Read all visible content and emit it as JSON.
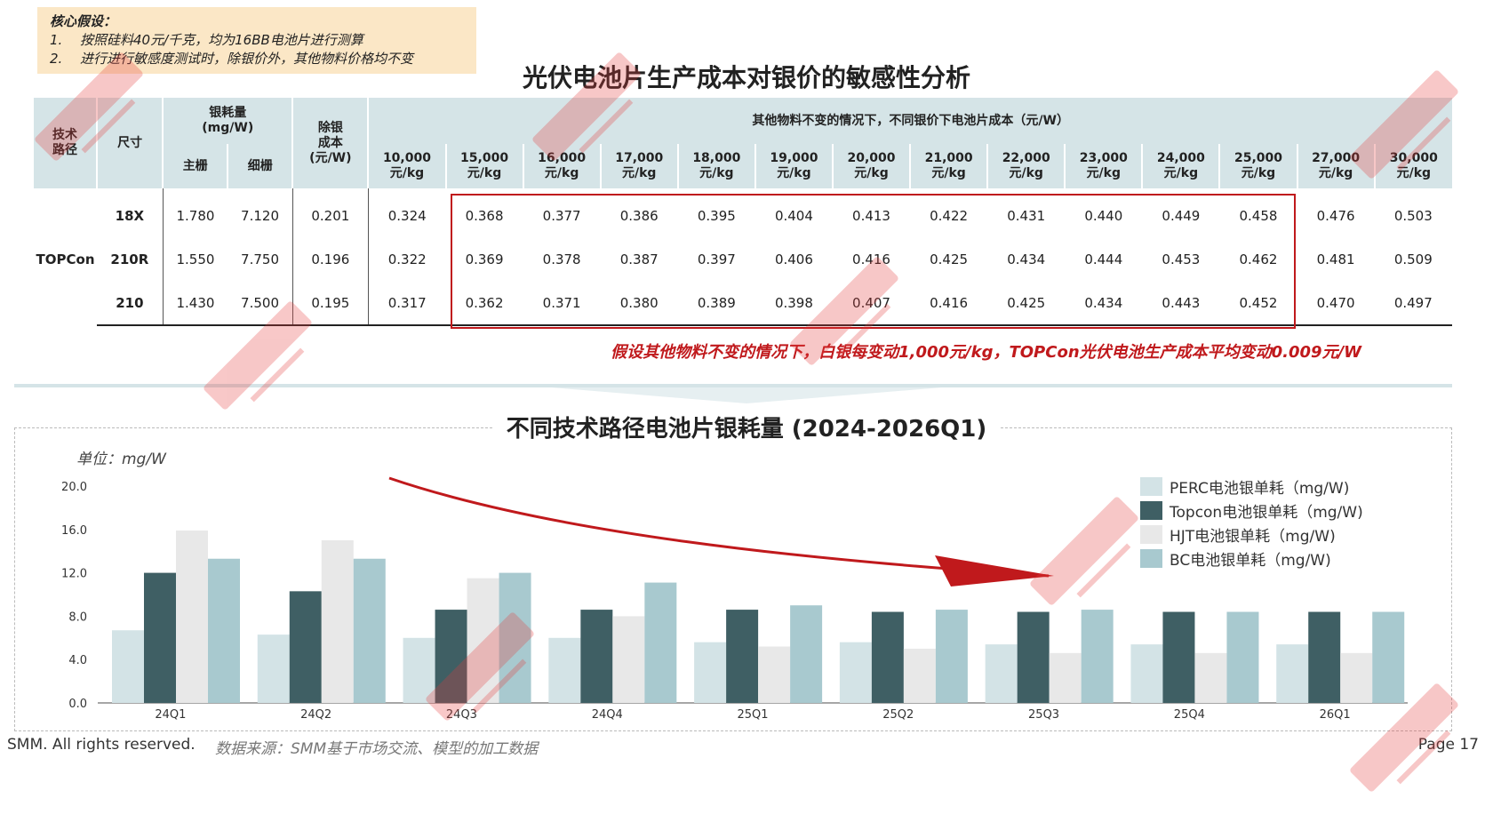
{
  "assumptions": {
    "title": "核心假设：",
    "items": [
      {
        "num": "1.",
        "text": "按照硅料40元/千克，均为16BB电池片进行测算"
      },
      {
        "num": "2.",
        "text": "进行进行敏感度测试时，除银价外，其他物料价格均不变"
      }
    ]
  },
  "title1": "光伏电池片生产成本对银价的敏感性分析",
  "table": {
    "h_tech": "技术\n路径",
    "h_size": "尺寸",
    "h_silver": "银耗量\n(mg/W)",
    "h_main": "主栅",
    "h_fine": "细栅",
    "h_exsilver": "除银\n成本\n(元/W)",
    "h_span": "其他物料不变的情况下，不同银价下电池片成本（元/W）",
    "price_cols": [
      "10,000\n元/kg",
      "15,000\n元/kg",
      "16,000\n元/kg",
      "17,000\n元/kg",
      "18,000\n元/kg",
      "19,000\n元/kg",
      "20,000\n元/kg",
      "21,000\n元/kg",
      "22,000\n元/kg",
      "23,000\n元/kg",
      "24,000\n元/kg",
      "25,000\n元/kg",
      "27,000\n元/kg",
      "30,000\n元/kg"
    ],
    "tech": "TOPCon",
    "rows": [
      {
        "size": "18X",
        "main": "1.780",
        "fine": "7.120",
        "ex": "0.201",
        "costs": [
          "0.324",
          "0.368",
          "0.377",
          "0.386",
          "0.395",
          "0.404",
          "0.413",
          "0.422",
          "0.431",
          "0.440",
          "0.449",
          "0.458",
          "0.476",
          "0.503"
        ]
      },
      {
        "size": "210R",
        "main": "1.550",
        "fine": "7.750",
        "ex": "0.196",
        "costs": [
          "0.322",
          "0.369",
          "0.378",
          "0.387",
          "0.397",
          "0.406",
          "0.416",
          "0.425",
          "0.434",
          "0.444",
          "0.453",
          "0.462",
          "0.481",
          "0.509"
        ]
      },
      {
        "size": "210",
        "main": "1.430",
        "fine": "7.500",
        "ex": "0.195",
        "costs": [
          "0.317",
          "0.362",
          "0.371",
          "0.380",
          "0.389",
          "0.398",
          "0.407",
          "0.416",
          "0.425",
          "0.434",
          "0.443",
          "0.452",
          "0.470",
          "0.497"
        ]
      }
    ]
  },
  "note": "假设其他物料不变的情况下，白银每变动1,000元/kg，TOPCon光伏电池生产成本平均变动0.009元/W",
  "title2": "不同技术路径电池片银耗量 (2024-2026Q1)",
  "unit": "单位：mg/W",
  "colors": {
    "perc": "#d3e3e6",
    "topcon": "#3f5f64",
    "hjt": "#e8e8e8",
    "bc": "#a8c9cf",
    "red": "#c0191c",
    "header": "#d5e4e7"
  },
  "chart_data": {
    "type": "bar",
    "categories": [
      "24Q1",
      "24Q2",
      "24Q3",
      "24Q4",
      "25Q1",
      "25Q2",
      "25Q3",
      "25Q4",
      "26Q1"
    ],
    "series": [
      {
        "name": "PERC电池银单耗（mg/W)",
        "values": [
          6.7,
          6.3,
          6.0,
          6.0,
          5.6,
          5.6,
          5.4,
          5.4,
          5.4
        ]
      },
      {
        "name": "Topcon电池银单耗（mg/W)",
        "values": [
          12.0,
          10.3,
          8.6,
          8.6,
          8.6,
          8.4,
          8.4,
          8.4,
          8.4
        ]
      },
      {
        "name": "HJT电池银单耗（mg/W)",
        "values": [
          15.9,
          15.0,
          11.5,
          8.0,
          5.2,
          5.0,
          4.6,
          4.6,
          4.6
        ]
      },
      {
        "name": "BC电池银单耗（mg/W)",
        "values": [
          13.3,
          13.3,
          12.0,
          11.1,
          9.0,
          8.6,
          8.6,
          8.4,
          8.4
        ]
      }
    ],
    "yticks": [
      "0.0",
      "4.0",
      "8.0",
      "12.0",
      "16.0",
      "20.0"
    ],
    "ylim": [
      0,
      20
    ]
  },
  "footer": {
    "rights": "SMM. All rights reserved.",
    "source": "数据来源：SMM基于市场交流、模型的加工数据",
    "page": "Page 17"
  }
}
